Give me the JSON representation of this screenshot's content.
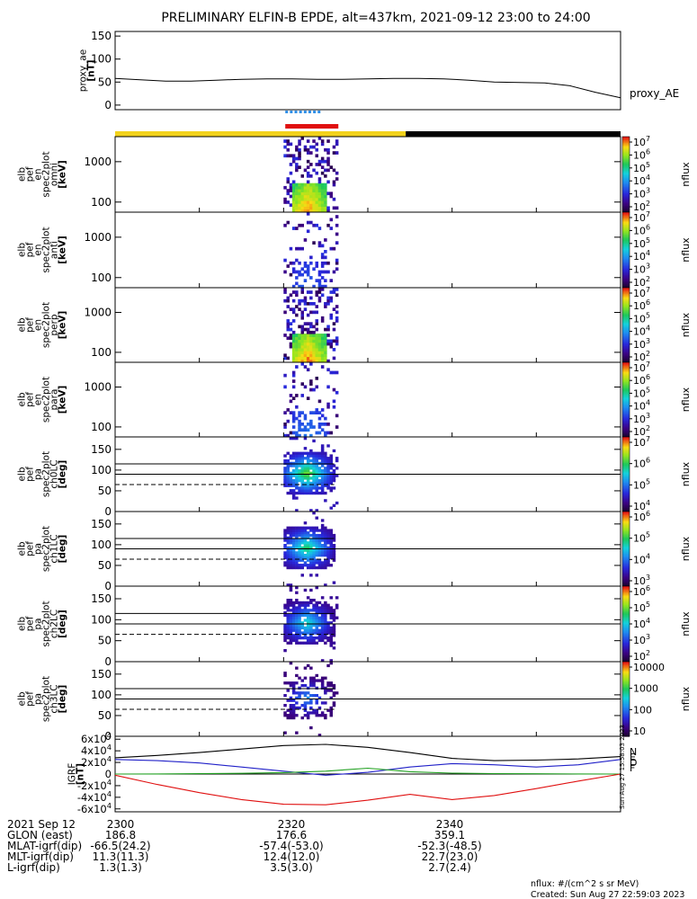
{
  "title": "PRELIMINARY ELFIN-B EPDE, alt=437km, 2021-09-12 23:00 to 24:00",
  "colors": {
    "bar_yellow": "#f2d21c",
    "bar_black": "#000000",
    "sci_blue": "#2f8fe8",
    "sci_red": "#e01010",
    "grf_x": "#2020c8",
    "grf_y": "#20a020",
    "grf_z": "#e01010",
    "grf_total": "#000000"
  },
  "chart_data": [
    {
      "type": "line",
      "ylabel": [
        "proxy_ae",
        "[nT]"
      ],
      "series_label": "proxy_AE",
      "ylim": [
        -10,
        160
      ],
      "yticks": [
        "150",
        "100",
        "50",
        "0"
      ],
      "x_minutes": [
        0,
        3,
        6,
        9,
        12,
        15,
        18,
        21,
        24,
        27,
        30,
        33,
        36,
        39,
        42,
        45,
        48,
        51,
        54,
        57,
        60
      ],
      "values": [
        58,
        55,
        52,
        52,
        54,
        56,
        57,
        57,
        56,
        56,
        57,
        58,
        58,
        57,
        54,
        50,
        49,
        48,
        42,
        28,
        16
      ]
    },
    {
      "type": "heatmap",
      "ylabel": [
        "elb",
        "pef",
        "en",
        "spec2plot",
        "omni",
        "[keV]"
      ],
      "yticks": [
        "1000",
        "100"
      ],
      "cbar_ticks": [
        "10^7",
        "10^6",
        "10^5",
        "10^4",
        "10^3",
        "10^2"
      ],
      "cbar_label": "nflux",
      "intensity": 1.0
    },
    {
      "type": "heatmap",
      "ylabel": [
        "elb",
        "pef",
        "en",
        "spec2plot",
        "anti",
        "[keV]"
      ],
      "yticks": [
        "1000",
        "100"
      ],
      "cbar_ticks": [
        "10^7",
        "10^6",
        "10^5",
        "10^4",
        "10^3",
        "10^2"
      ],
      "cbar_label": "nflux",
      "intensity": 0.35
    },
    {
      "type": "heatmap",
      "ylabel": [
        "elb",
        "pef",
        "en",
        "spec2plot",
        "perp",
        "[keV]"
      ],
      "yticks": [
        "1000",
        "100"
      ],
      "cbar_ticks": [
        "10^7",
        "10^6",
        "10^5",
        "10^4",
        "10^3",
        "10^2"
      ],
      "cbar_label": "nflux",
      "intensity": 1.0
    },
    {
      "type": "heatmap",
      "ylabel": [
        "elb",
        "pef",
        "en",
        "spec2plot",
        "para",
        "[keV]"
      ],
      "yticks": [
        "1000",
        "100"
      ],
      "cbar_ticks": [
        "10^7",
        "10^6",
        "10^5",
        "10^4",
        "10^3",
        "10^2"
      ],
      "cbar_label": "nflux",
      "intensity": 0.4
    },
    {
      "type": "heatmap",
      "ylabel": [
        "elb",
        "pef",
        "pa",
        "spec2plot",
        "ch0LC",
        "[deg]"
      ],
      "ylim": [
        0,
        180
      ],
      "yticks": [
        "150",
        "100",
        "50",
        "0"
      ],
      "cbar_ticks": [
        "10^7",
        "10^6",
        "10^5",
        "10^4"
      ],
      "cbar_label": "nflux",
      "intensity": 1.0
    },
    {
      "type": "heatmap",
      "ylabel": [
        "elb",
        "pef",
        "pa",
        "spec2plot",
        "ch1LC",
        "[deg]"
      ],
      "ylim": [
        0,
        180
      ],
      "yticks": [
        "150",
        "100",
        "50",
        "0"
      ],
      "cbar_ticks": [
        "10^6",
        "10^5",
        "10^4",
        "10^3"
      ],
      "cbar_label": "nflux",
      "intensity": 0.8
    },
    {
      "type": "heatmap",
      "ylabel": [
        "elb",
        "pef",
        "pa",
        "spec2plot",
        "ch2LC",
        "[deg]"
      ],
      "ylim": [
        0,
        180
      ],
      "yticks": [
        "150",
        "100",
        "50",
        "0"
      ],
      "cbar_ticks": [
        "10^6",
        "10^5",
        "10^4",
        "10^3",
        "10^2"
      ],
      "cbar_label": "nflux",
      "intensity": 0.6
    },
    {
      "type": "heatmap",
      "ylabel": [
        "elb",
        "pef",
        "pa",
        "spec2plot",
        "ch3LC",
        "[deg]"
      ],
      "ylim": [
        0,
        180
      ],
      "yticks": [
        "150",
        "100",
        "50",
        "0"
      ],
      "cbar_ticks": [
        "10000",
        "1000",
        "100",
        "10"
      ],
      "cbar_label": "nflux",
      "intensity": 0.25
    },
    {
      "type": "line",
      "ylabel": [
        "IGRF",
        "[nT]"
      ],
      "ylim": [
        -65000,
        65000
      ],
      "yticks": [
        "6x10^4",
        "4x10^4",
        "2x10^4",
        "0",
        "-2x10^4",
        "-4x10^4",
        "-6x10^4"
      ],
      "legend": [
        "N",
        "E",
        "D",
        "F"
      ],
      "x_minutes": [
        0,
        5,
        10,
        15,
        20,
        25,
        30,
        35,
        40,
        45,
        50,
        55,
        60
      ],
      "series": [
        {
          "values": [
            28000,
            32000,
            37000,
            43000,
            49000,
            51000,
            46000,
            37000,
            27000,
            23000,
            24000,
            26000,
            30000
          ]
        },
        {
          "values": [
            25000,
            23000,
            19000,
            12000,
            5000,
            -2000,
            3000,
            12000,
            18000,
            16000,
            12000,
            16000,
            25000
          ]
        },
        {
          "values": [
            0,
            200,
            600,
            1200,
            2500,
            5000,
            10000,
            4000,
            1500,
            800,
            400,
            200,
            0
          ]
        },
        {
          "values": [
            -2000,
            -18000,
            -32000,
            -44000,
            -52000,
            -53000,
            -45000,
            -35000,
            -44000,
            -37000,
            -25000,
            -12000,
            0
          ]
        }
      ]
    }
  ],
  "axis_rows": {
    "labels": [
      "2021 Sep 12",
      "GLON (east)",
      "MLAT-igrf(dip)",
      "MLT-igrf(dip)",
      "L-igrf(dip)"
    ],
    "ticks": [
      {
        "time": "2300",
        "values": [
          "186.8",
          "-66.5(24.2)",
          "11.3(11.3)",
          "1.3(1.3)"
        ]
      },
      {
        "time": "2320",
        "values": [
          "176.6",
          "-57.4(-53.0)",
          "12.4(12.0)",
          "3.5(3.0)"
        ]
      },
      {
        "time": "2340",
        "values": [
          "359.1",
          "-52.3(-48.5)",
          "22.7(23.0)",
          "2.7(2.4)"
        ]
      }
    ]
  },
  "footer": {
    "units": "nflux: #/(cm^2 s sr MeV)",
    "created": "Created: Sun Aug 27 22:59:03 2023",
    "side_stamp": "Sun Aug 27 15:58:03 2023"
  }
}
